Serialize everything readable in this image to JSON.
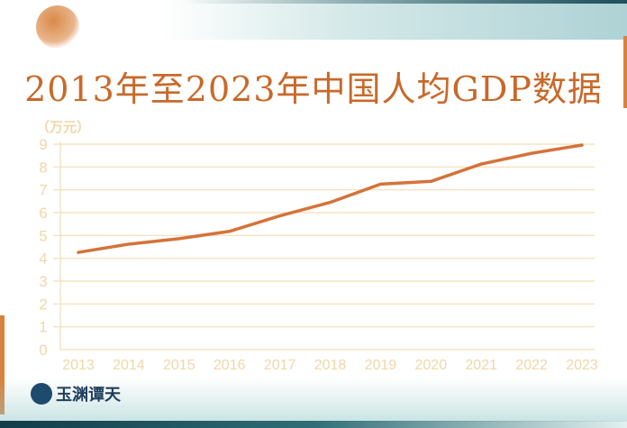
{
  "chart_data": {
    "type": "line",
    "title": "2013年至2023年中国人均GDP数据",
    "ylabel": "（万元）",
    "xlabel": "",
    "categories": [
      "2013",
      "2014",
      "2015",
      "2016",
      "2017",
      "2018",
      "2019",
      "2020",
      "2021",
      "2022",
      "2023"
    ],
    "values": [
      4.26,
      4.62,
      4.86,
      5.18,
      5.86,
      6.45,
      7.25,
      7.37,
      8.13,
      8.6,
      8.96
    ],
    "ylim": [
      0,
      9
    ],
    "yticks": [
      "0",
      "1",
      "2",
      "3",
      "4",
      "5",
      "6",
      "7",
      "8",
      "9"
    ],
    "grid": true,
    "line_color": "#d4733a",
    "grid_color": "#f5ddb5",
    "tick_color": "#f2d6a8"
  },
  "logo": {
    "text": "玉渊谭天"
  }
}
